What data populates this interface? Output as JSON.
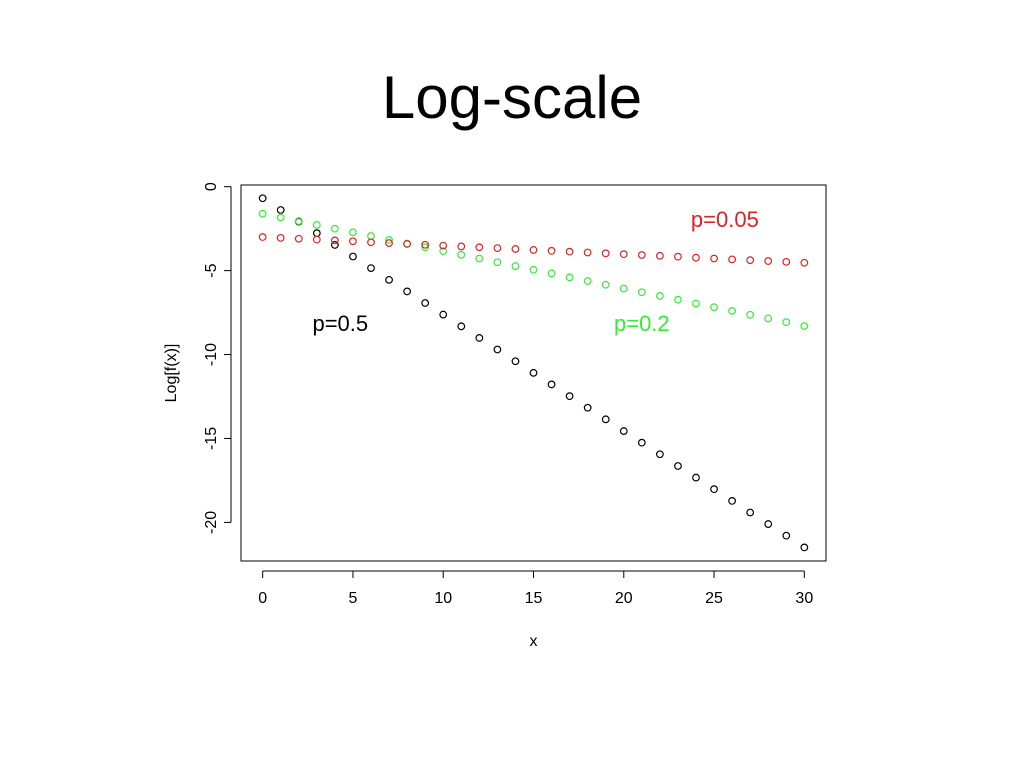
{
  "slide": {
    "title": "Log-scale"
  },
  "chart_data": {
    "type": "scatter",
    "title": "Log-scale",
    "xlabel": "x",
    "ylabel": "Log[f(x)]",
    "xlim": [
      -1.2,
      31.2
    ],
    "ylim": [
      -22.3,
      0.1
    ],
    "x_ticks": [
      0,
      5,
      10,
      15,
      20,
      25,
      30
    ],
    "y_ticks": [
      0,
      -5,
      -10,
      -15,
      -20
    ],
    "marker": "open-circle",
    "grid": false,
    "legend": "inline text labels",
    "series": [
      {
        "name": "p=0.5",
        "color": "#000000",
        "x": [
          0,
          1,
          2,
          3,
          4,
          5,
          6,
          7,
          8,
          9,
          10,
          11,
          12,
          13,
          14,
          15,
          16,
          17,
          18,
          19,
          20,
          21,
          22,
          23,
          24,
          25,
          26,
          27,
          28,
          29,
          30
        ],
        "y": [
          -0.69,
          -1.39,
          -2.08,
          -2.77,
          -3.47,
          -4.16,
          -4.85,
          -5.55,
          -6.24,
          -6.93,
          -7.62,
          -8.32,
          -9.01,
          -9.7,
          -10.4,
          -11.09,
          -11.78,
          -12.48,
          -13.17,
          -13.86,
          -14.56,
          -15.25,
          -15.94,
          -16.64,
          -17.33,
          -18.02,
          -18.72,
          -19.41,
          -20.1,
          -20.79,
          -21.49
        ]
      },
      {
        "name": "p=0.2",
        "color": "#33ee33",
        "x": [
          0,
          1,
          2,
          3,
          4,
          5,
          6,
          7,
          8,
          9,
          10,
          11,
          12,
          13,
          14,
          15,
          16,
          17,
          18,
          19,
          20,
          21,
          22,
          23,
          24,
          25,
          26,
          27,
          28,
          29,
          30
        ],
        "y": [
          -1.61,
          -1.83,
          -2.05,
          -2.28,
          -2.5,
          -2.72,
          -2.94,
          -3.17,
          -3.39,
          -3.61,
          -3.84,
          -4.06,
          -4.28,
          -4.5,
          -4.73,
          -4.95,
          -5.17,
          -5.4,
          -5.62,
          -5.84,
          -6.07,
          -6.29,
          -6.51,
          -6.73,
          -6.96,
          -7.18,
          -7.4,
          -7.63,
          -7.85,
          -8.07,
          -8.3
        ]
      },
      {
        "name": "p=0.05",
        "color": "#dd2222",
        "x": [
          0,
          1,
          2,
          3,
          4,
          5,
          6,
          7,
          8,
          9,
          10,
          11,
          12,
          13,
          14,
          15,
          16,
          17,
          18,
          19,
          20,
          21,
          22,
          23,
          24,
          25,
          26,
          27,
          28,
          29,
          30
        ],
        "y": [
          -3.0,
          -3.05,
          -3.1,
          -3.15,
          -3.2,
          -3.25,
          -3.31,
          -3.36,
          -3.41,
          -3.46,
          -3.51,
          -3.56,
          -3.61,
          -3.66,
          -3.71,
          -3.77,
          -3.82,
          -3.87,
          -3.92,
          -3.97,
          -4.02,
          -4.07,
          -4.12,
          -4.17,
          -4.23,
          -4.28,
          -4.33,
          -4.38,
          -4.43,
          -4.48,
          -4.53
        ]
      }
    ],
    "annotations": [
      {
        "text": "p=0.5",
        "x": 4.3,
        "y": -8.6,
        "color": "#000000"
      },
      {
        "text": "p=0.2",
        "x": 21.0,
        "y": -8.6,
        "color": "#33ee33"
      },
      {
        "text": "p=0.05",
        "x": 25.6,
        "y": -2.4,
        "color": "#dd2222"
      }
    ]
  }
}
